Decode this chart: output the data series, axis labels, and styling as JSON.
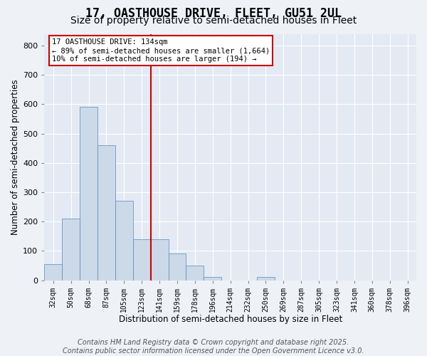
{
  "title": "17, OASTHOUSE DRIVE, FLEET, GU51 2UL",
  "subtitle": "Size of property relative to semi-detached houses in Fleet",
  "xlabel": "Distribution of semi-detached houses by size in Fleet",
  "ylabel": "Number of semi-detached properties",
  "bar_labels": [
    "32sqm",
    "50sqm",
    "68sqm",
    "87sqm",
    "105sqm",
    "123sqm",
    "141sqm",
    "159sqm",
    "178sqm",
    "196sqm",
    "214sqm",
    "232sqm",
    "250sqm",
    "269sqm",
    "287sqm",
    "305sqm",
    "323sqm",
    "341sqm",
    "360sqm",
    "378sqm",
    "396sqm"
  ],
  "bar_values": [
    55,
    210,
    590,
    460,
    270,
    140,
    140,
    90,
    50,
    10,
    0,
    0,
    10,
    0,
    0,
    0,
    0,
    0,
    0,
    0,
    0
  ],
  "bar_color": "#ccd9e8",
  "bar_edge_color": "#5588bb",
  "red_line_index": 6,
  "red_line_color": "#cc0000",
  "ylim": [
    0,
    840
  ],
  "yticks": [
    0,
    100,
    200,
    300,
    400,
    500,
    600,
    700,
    800
  ],
  "annotation_title": "17 OASTHOUSE DRIVE: 134sqm",
  "annotation_line1": "← 89% of semi-detached houses are smaller (1,664)",
  "annotation_line2": "10% of semi-detached houses are larger (194) →",
  "annotation_box_facecolor": "#ffffff",
  "annotation_box_edgecolor": "#cc0000",
  "footnote_line1": "Contains HM Land Registry data © Crown copyright and database right 2025.",
  "footnote_line2": "Contains public sector information licensed under the Open Government Licence v3.0.",
  "bg_color": "#eef2f7",
  "plot_bg_color": "#e4eaf3",
  "grid_color": "#ffffff",
  "title_fontsize": 12,
  "subtitle_fontsize": 10,
  "footnote_fontsize": 7
}
